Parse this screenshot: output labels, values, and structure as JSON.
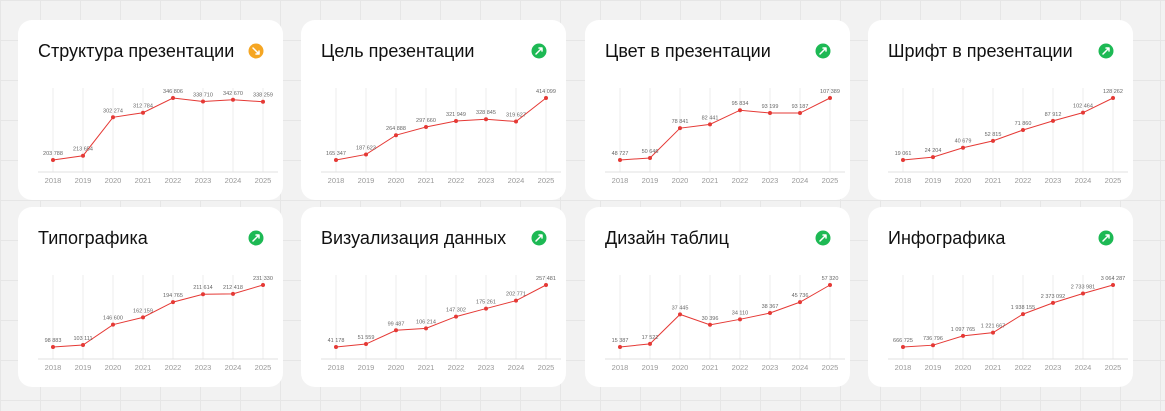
{
  "chart_data": [
    {
      "type": "line",
      "title": "Структура презентации",
      "categories": [
        "2018",
        "2019",
        "2020",
        "2021",
        "2022",
        "2023",
        "2024",
        "2025"
      ],
      "values": [
        203788,
        213654,
        302274,
        312784,
        346806,
        338710,
        342670,
        338259
      ],
      "value_labels": [
        "203 788",
        "213 654",
        "302 274",
        "312 784",
        "346 806",
        "338 710",
        "342 670",
        "338 259"
      ],
      "color": "#e53935",
      "badge": {
        "color": "#f5a623",
        "direction": "down"
      }
    },
    {
      "type": "line",
      "title": "Цель презентации",
      "categories": [
        "2018",
        "2019",
        "2020",
        "2021",
        "2022",
        "2023",
        "2024",
        "2025"
      ],
      "values": [
        165347,
        187623,
        264888,
        297660,
        321949,
        328845,
        319627,
        414099
      ],
      "value_labels": [
        "165 347",
        "187 623",
        "264 888",
        "297 660",
        "321 949",
        "328 845",
        "319 627",
        "414 099"
      ],
      "color": "#e53935",
      "badge": {
        "color": "#1db954",
        "direction": "up"
      }
    },
    {
      "type": "line",
      "title": "Цвет в презентации",
      "categories": [
        "2018",
        "2019",
        "2020",
        "2021",
        "2022",
        "2023",
        "2024",
        "2025"
      ],
      "values": [
        48727,
        50646,
        78841,
        82441,
        95834,
        93199,
        93187,
        107389
      ],
      "value_labels": [
        "48 727",
        "50 646",
        "78 841",
        "82 441",
        "95 834",
        "93 199",
        "93 187",
        "107 389"
      ],
      "color": "#e53935",
      "badge": {
        "color": "#1db954",
        "direction": "up"
      }
    },
    {
      "type": "line",
      "title": "Шрифт в презентации",
      "categories": [
        "2018",
        "2019",
        "2020",
        "2021",
        "2022",
        "2023",
        "2024",
        "2025"
      ],
      "values": [
        19061,
        24204,
        40679,
        52815,
        71860,
        87912,
        102464,
        128262
      ],
      "value_labels": [
        "19 061",
        "24 204",
        "40 679",
        "52 815",
        "71 860",
        "87 912",
        "102 464",
        "128 262"
      ],
      "color": "#e53935",
      "badge": {
        "color": "#1db954",
        "direction": "up"
      }
    },
    {
      "type": "line",
      "title": "Типографика",
      "categories": [
        "2018",
        "2019",
        "2020",
        "2021",
        "2022",
        "2023",
        "2024",
        "2025"
      ],
      "values": [
        98883,
        103111,
        146600,
        162159,
        194765,
        211614,
        212418,
        231330
      ],
      "value_labels": [
        "98 883",
        "103 111",
        "146 600",
        "162 159",
        "194 765",
        "211 614",
        "212 418",
        "231 330"
      ],
      "color": "#e53935",
      "badge": {
        "color": "#1db954",
        "direction": "up"
      }
    },
    {
      "type": "line",
      "title": "Визуализация данных",
      "categories": [
        "2018",
        "2019",
        "2020",
        "2021",
        "2022",
        "2023",
        "2024",
        "2025"
      ],
      "values": [
        41178,
        51559,
        99487,
        106214,
        147302,
        175261,
        202771,
        257481
      ],
      "value_labels": [
        "41 178",
        "51 559",
        "99 487",
        "106 214",
        "147 302",
        "175 261",
        "202 771",
        "257 481"
      ],
      "color": "#e53935",
      "badge": {
        "color": "#1db954",
        "direction": "up"
      }
    },
    {
      "type": "line",
      "title": "Дизайн таблиц",
      "categories": [
        "2018",
        "2019",
        "2020",
        "2021",
        "2022",
        "2023",
        "2024",
        "2025"
      ],
      "values": [
        15387,
        17522,
        37445,
        30396,
        34110,
        38367,
        45736,
        57320
      ],
      "value_labels": [
        "15 387",
        "17 522",
        "37 445",
        "30 396",
        "34 110",
        "38 367",
        "45 736",
        "57 320"
      ],
      "color": "#e53935",
      "badge": {
        "color": "#1db954",
        "direction": "up"
      }
    },
    {
      "type": "line",
      "title": "Инфографика",
      "categories": [
        "2018",
        "2019",
        "2020",
        "2021",
        "2022",
        "2023",
        "2024",
        "2025"
      ],
      "values": [
        666725,
        736796,
        1097765,
        1221667,
        1938155,
        2373092,
        2733981,
        3064287
      ],
      "value_labels": [
        "666 725",
        "736 796",
        "1 097 765",
        "1 221 667",
        "1 938 155",
        "2 373 092",
        "2 733 981",
        "3 064 287"
      ],
      "color": "#e53935",
      "badge": {
        "color": "#1db954",
        "direction": "up"
      }
    }
  ]
}
